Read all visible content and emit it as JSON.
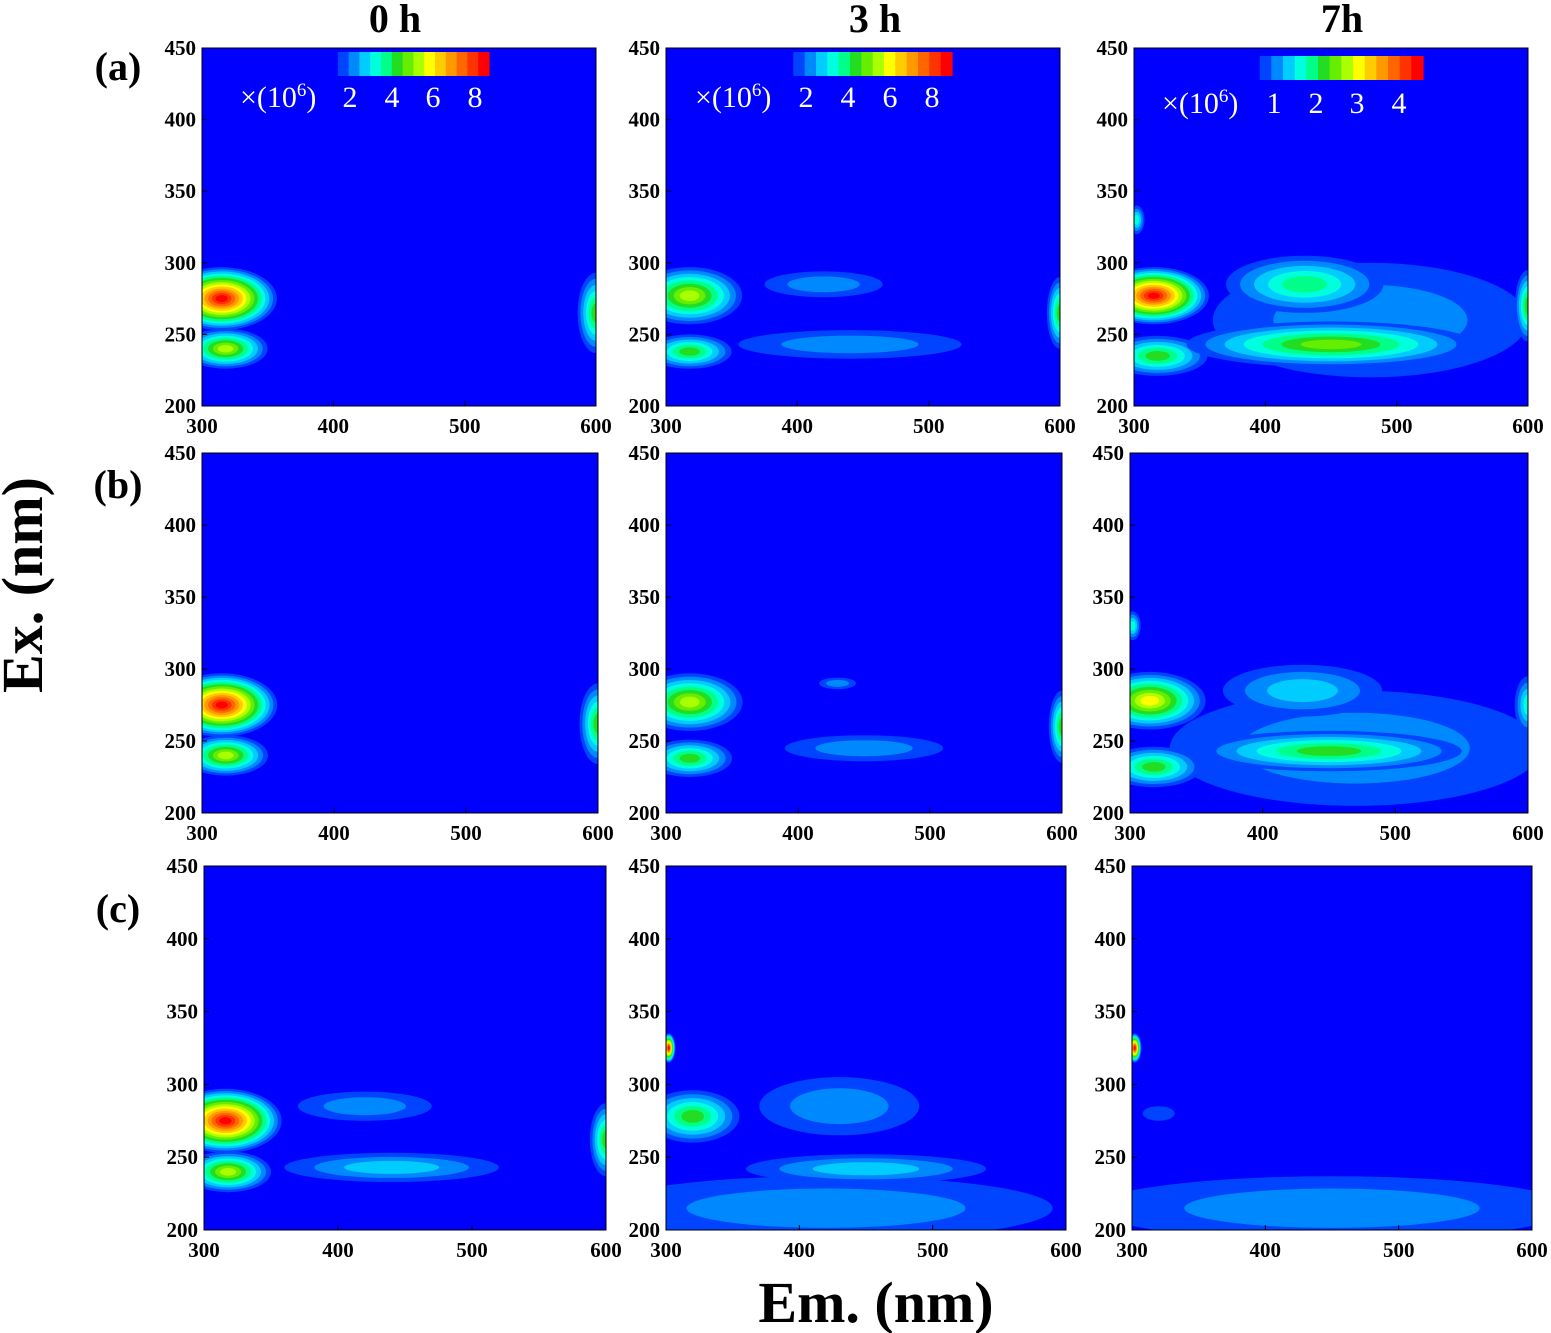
{
  "figure": {
    "column_titles": [
      "0 h",
      "3 h",
      "7h"
    ],
    "row_labels": [
      "(a)",
      "(b)",
      "(c)"
    ],
    "xlabel": "Em. (nm)",
    "ylabel": "Ex. (nm)"
  },
  "colormap": [
    "#0000ff",
    "#0044ff",
    "#0088ff",
    "#00ccff",
    "#00ffdd",
    "#00ff88",
    "#22dd22",
    "#66ee00",
    "#aaff00",
    "#ffff00",
    "#ffcc00",
    "#ff9900",
    "#ff6600",
    "#ff3300",
    "#ff0000"
  ],
  "chart_data": [
    {
      "type": "heatmap",
      "panel": "a-0h",
      "x_range": [
        300,
        600
      ],
      "y_range": [
        200,
        450
      ],
      "xticks": [
        "300",
        "400",
        "500",
        "600"
      ],
      "yticks": [
        "200",
        "250",
        "300",
        "350",
        "400",
        "450"
      ],
      "colorbar": {
        "multiplier": "×(10",
        "exponent": "6",
        "close": ")",
        "ticks": [
          "2",
          "4",
          "6",
          "8"
        ]
      },
      "peaks": [
        {
          "em": 315,
          "ex": 275,
          "level": 1.0,
          "rx": 42,
          "ry": 22
        },
        {
          "em": 318,
          "ex": 240,
          "level": 0.6,
          "rx": 32,
          "ry": 14
        },
        {
          "em": 600,
          "ex": 265,
          "level": 0.45,
          "rx": 14,
          "ry": 28
        }
      ]
    },
    {
      "type": "heatmap",
      "panel": "a-3h",
      "x_range": [
        300,
        600
      ],
      "y_range": [
        200,
        450
      ],
      "xticks": [
        "300",
        "400",
        "500",
        "600"
      ],
      "yticks": [
        "200",
        "250",
        "300",
        "350",
        "400",
        "450"
      ],
      "colorbar": {
        "multiplier": "×(10",
        "exponent": "6",
        "close": ")",
        "ticks": [
          "2",
          "4",
          "6",
          "8"
        ]
      },
      "peaks": [
        {
          "em": 318,
          "ex": 277,
          "level": 0.6,
          "rx": 40,
          "ry": 20
        },
        {
          "em": 318,
          "ex": 238,
          "level": 0.4,
          "rx": 32,
          "ry": 12
        },
        {
          "em": 420,
          "ex": 285,
          "level": 0.12,
          "rx": 45,
          "ry": 9
        },
        {
          "em": 440,
          "ex": 243,
          "level": 0.16,
          "rx": 85,
          "ry": 10
        },
        {
          "em": 600,
          "ex": 265,
          "level": 0.4,
          "rx": 10,
          "ry": 25
        }
      ]
    },
    {
      "type": "heatmap",
      "panel": "a-7h",
      "x_range": [
        300,
        600
      ],
      "y_range": [
        200,
        450
      ],
      "xticks": [
        "300",
        "400",
        "500",
        "600"
      ],
      "yticks": [
        "200",
        "250",
        "300",
        "350",
        "400",
        "450"
      ],
      "colorbar": {
        "multiplier": "×(10",
        "exponent": "6",
        "close": ")",
        "ticks": [
          "1",
          "2",
          "3",
          "4"
        ]
      },
      "peaks": [
        {
          "em": 315,
          "ex": 277,
          "level": 1.0,
          "rx": 42,
          "ry": 20
        },
        {
          "em": 318,
          "ex": 235,
          "level": 0.45,
          "rx": 38,
          "ry": 14
        },
        {
          "em": 430,
          "ex": 285,
          "level": 0.35,
          "rx": 60,
          "ry": 20
        },
        {
          "em": 450,
          "ex": 243,
          "level": 0.5,
          "rx": 110,
          "ry": 16
        },
        {
          "em": 480,
          "ex": 260,
          "level": 0.15,
          "rx": 120,
          "ry": 40
        },
        {
          "em": 600,
          "ex": 270,
          "level": 0.4,
          "rx": 10,
          "ry": 25
        },
        {
          "em": 302,
          "ex": 330,
          "level": 0.3,
          "rx": 6,
          "ry": 10
        }
      ]
    },
    {
      "type": "heatmap",
      "panel": "b-0h",
      "x_range": [
        300,
        600
      ],
      "y_range": [
        200,
        450
      ],
      "xticks": [
        "300",
        "400",
        "500",
        "600"
      ],
      "yticks": [
        "200",
        "250",
        "300",
        "350",
        "400",
        "450"
      ],
      "peaks": [
        {
          "em": 315,
          "ex": 275,
          "level": 1.0,
          "rx": 42,
          "ry": 22
        },
        {
          "em": 318,
          "ex": 240,
          "level": 0.6,
          "rx": 32,
          "ry": 14
        },
        {
          "em": 600,
          "ex": 262,
          "level": 0.45,
          "rx": 14,
          "ry": 28
        }
      ]
    },
    {
      "type": "heatmap",
      "panel": "b-3h",
      "x_range": [
        300,
        600
      ],
      "y_range": [
        200,
        450
      ],
      "xticks": [
        "300",
        "400",
        "500",
        "600"
      ],
      "yticks": [
        "200",
        "250",
        "300",
        "350",
        "400",
        "450"
      ],
      "peaks": [
        {
          "em": 318,
          "ex": 277,
          "level": 0.6,
          "rx": 40,
          "ry": 20
        },
        {
          "em": 318,
          "ex": 238,
          "level": 0.45,
          "rx": 32,
          "ry": 13
        },
        {
          "em": 430,
          "ex": 290,
          "level": 0.12,
          "rx": 14,
          "ry": 4
        },
        {
          "em": 450,
          "ex": 245,
          "level": 0.12,
          "rx": 60,
          "ry": 9
        },
        {
          "em": 600,
          "ex": 260,
          "level": 0.4,
          "rx": 10,
          "ry": 25
        }
      ]
    },
    {
      "type": "heatmap",
      "panel": "b-7h",
      "x_range": [
        300,
        600
      ],
      "y_range": [
        200,
        450
      ],
      "xticks": [
        "300",
        "400",
        "500",
        "600"
      ],
      "yticks": [
        "200",
        "250",
        "300",
        "350",
        "400",
        "450"
      ],
      "peaks": [
        {
          "em": 315,
          "ex": 278,
          "level": 0.65,
          "rx": 42,
          "ry": 20
        },
        {
          "em": 318,
          "ex": 232,
          "level": 0.4,
          "rx": 36,
          "ry": 14
        },
        {
          "em": 430,
          "ex": 285,
          "level": 0.22,
          "rx": 60,
          "ry": 18
        },
        {
          "em": 450,
          "ex": 243,
          "level": 0.4,
          "rx": 100,
          "ry": 14
        },
        {
          "em": 470,
          "ex": 245,
          "level": 0.12,
          "rx": 140,
          "ry": 40
        },
        {
          "em": 600,
          "ex": 275,
          "level": 0.3,
          "rx": 10,
          "ry": 20
        },
        {
          "em": 302,
          "ex": 330,
          "level": 0.3,
          "rx": 6,
          "ry": 10
        }
      ]
    },
    {
      "type": "heatmap",
      "panel": "c-0h",
      "x_range": [
        300,
        600
      ],
      "y_range": [
        200,
        450
      ],
      "xticks": [
        "300",
        "400",
        "500",
        "600"
      ],
      "yticks": [
        "200",
        "250",
        "300",
        "350",
        "400",
        "450"
      ],
      "peaks": [
        {
          "em": 316,
          "ex": 275,
          "level": 1.0,
          "rx": 42,
          "ry": 22
        },
        {
          "em": 318,
          "ex": 240,
          "level": 0.6,
          "rx": 32,
          "ry": 14
        },
        {
          "em": 420,
          "ex": 285,
          "level": 0.12,
          "rx": 50,
          "ry": 10
        },
        {
          "em": 440,
          "ex": 243,
          "level": 0.18,
          "rx": 80,
          "ry": 10
        },
        {
          "em": 600,
          "ex": 262,
          "level": 0.45,
          "rx": 12,
          "ry": 25
        }
      ]
    },
    {
      "type": "heatmap",
      "panel": "c-3h",
      "x_range": [
        300,
        600
      ],
      "y_range": [
        200,
        450
      ],
      "xticks": [
        "300",
        "400",
        "500",
        "600"
      ],
      "yticks": [
        "200",
        "250",
        "300",
        "350",
        "400",
        "450"
      ],
      "peaks": [
        {
          "em": 320,
          "ex": 278,
          "level": 0.4,
          "rx": 35,
          "ry": 18
        },
        {
          "em": 302,
          "ex": 325,
          "level": 1.0,
          "rx": 5,
          "ry": 10
        },
        {
          "em": 430,
          "ex": 285,
          "level": 0.12,
          "rx": 60,
          "ry": 20
        },
        {
          "em": 450,
          "ex": 242,
          "level": 0.18,
          "rx": 90,
          "ry": 10
        },
        {
          "em": 420,
          "ex": 215,
          "level": 0.14,
          "rx": 170,
          "ry": 22
        }
      ]
    },
    {
      "type": "heatmap",
      "panel": "c-7h",
      "x_range": [
        300,
        600
      ],
      "y_range": [
        200,
        450
      ],
      "xticks": [
        "300",
        "400",
        "500",
        "600"
      ],
      "yticks": [
        "200",
        "250",
        "300",
        "350",
        "400",
        "450"
      ],
      "peaks": [
        {
          "em": 302,
          "ex": 325,
          "level": 1.0,
          "rx": 5,
          "ry": 10
        },
        {
          "em": 320,
          "ex": 280,
          "level": 0.1,
          "rx": 12,
          "ry": 5
        },
        {
          "em": 450,
          "ex": 215,
          "level": 0.15,
          "rx": 180,
          "ry": 22
        }
      ]
    }
  ]
}
